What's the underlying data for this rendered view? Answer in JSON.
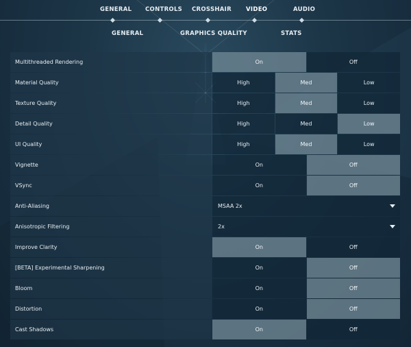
{
  "top_nav": [
    "GENERAL",
    "CONTROLS",
    "CROSSHAIR",
    "VIDEO",
    "AUDIO"
  ],
  "sub_nav": [
    "GENERAL",
    "GRAPHICS QUALITY",
    "STATS"
  ],
  "settings": [
    {
      "label": "Multithreaded Rendering",
      "type": "toggle2",
      "options": [
        "On",
        "Off"
      ],
      "selected": 0
    },
    {
      "label": "Material Quality",
      "type": "toggle3",
      "options": [
        "High",
        "Med",
        "Low"
      ],
      "selected": 1
    },
    {
      "label": "Texture Quality",
      "type": "toggle3",
      "options": [
        "High",
        "Med",
        "Low"
      ],
      "selected": 1
    },
    {
      "label": "Detail Quality",
      "type": "toggle3",
      "options": [
        "High",
        "Med",
        "Low"
      ],
      "selected": 2
    },
    {
      "label": "UI Quality",
      "type": "toggle3",
      "options": [
        "High",
        "Med",
        "Low"
      ],
      "selected": 1
    },
    {
      "label": "Vignette",
      "type": "toggle2",
      "options": [
        "On",
        "Off"
      ],
      "selected": 1
    },
    {
      "label": "VSync",
      "type": "toggle2",
      "options": [
        "On",
        "Off"
      ],
      "selected": 1
    },
    {
      "label": "Anti-Aliasing",
      "type": "dropdown",
      "value": "MSAA 2x"
    },
    {
      "label": "Anisotropic Filtering",
      "type": "dropdown",
      "value": "2x"
    },
    {
      "label": "Improve Clarity",
      "type": "toggle2",
      "options": [
        "On",
        "Off"
      ],
      "selected": 0
    },
    {
      "label": "[BETA] Experimental Sharpening",
      "type": "toggle2",
      "options": [
        "On",
        "Off"
      ],
      "selected": 1
    },
    {
      "label": "Bloom",
      "type": "toggle2",
      "options": [
        "On",
        "Off"
      ],
      "selected": 1
    },
    {
      "label": "Distortion",
      "type": "toggle2",
      "options": [
        "On",
        "Off"
      ],
      "selected": 1
    },
    {
      "label": "Cast Shadows",
      "type": "toggle2",
      "options": [
        "On",
        "Off"
      ],
      "selected": 0
    }
  ]
}
